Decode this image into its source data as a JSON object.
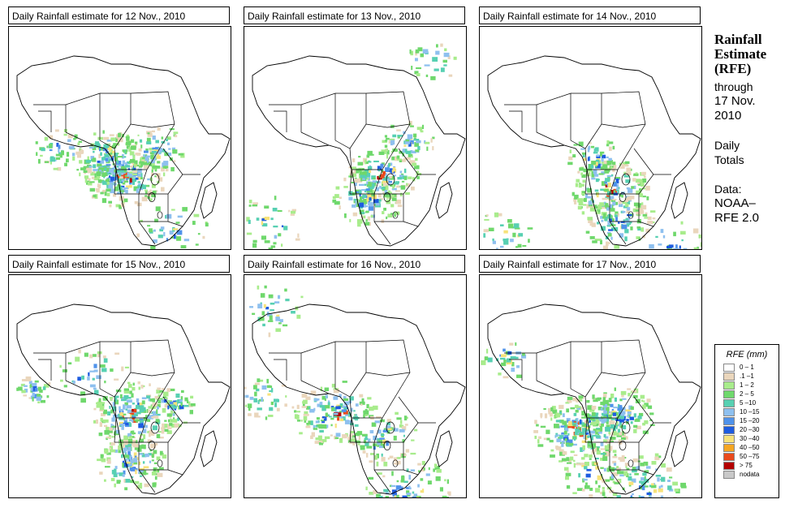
{
  "panels": [
    {
      "title": "Daily Rainfall estimate for  12 Nov., 2010",
      "pattern": 0
    },
    {
      "title": "Daily Rainfall estimate for  13 Nov., 2010",
      "pattern": 1
    },
    {
      "title": "Daily Rainfall estimate for  14 Nov., 2010",
      "pattern": 2
    },
    {
      "title": "Daily Rainfall estimate for  15 Nov., 2010",
      "pattern": 3
    },
    {
      "title": "Daily Rainfall estimate for  16 Nov., 2010",
      "pattern": 4
    },
    {
      "title": "Daily Rainfall estimate for  17 Nov., 2010",
      "pattern": 5
    }
  ],
  "side": {
    "title_line1": "Rainfall",
    "title_line2": "Estimate",
    "title_line3": "(RFE)",
    "through_line1": "through",
    "through_line2": "17 Nov.",
    "through_line3": "2010",
    "totals_line1": "Daily",
    "totals_line2": "Totals",
    "data_line1": "Data:",
    "data_line2": "NOAA–",
    "data_line3": "RFE 2.0"
  },
  "legend": {
    "title": "RFE (mm)",
    "items": [
      {
        "label": "0 – 1",
        "color": "#ffffff"
      },
      {
        "label": ".1 –1",
        "color": "#ead6bc"
      },
      {
        "label": "1 – 2",
        "color": "#a8ec8c"
      },
      {
        "label": "2 – 5",
        "color": "#6fd86c"
      },
      {
        "label": "5 –10",
        "color": "#57d0b2"
      },
      {
        "label": "10 –15",
        "color": "#8ec0ef"
      },
      {
        "label": "15 –20",
        "color": "#4f92ea"
      },
      {
        "label": "20 –30",
        "color": "#1e5ce0"
      },
      {
        "label": "30 –40",
        "color": "#f7e27a"
      },
      {
        "label": "40 –50",
        "color": "#f5a623"
      },
      {
        "label": "50 –75",
        "color": "#e94a1c"
      },
      {
        "label": "> 75",
        "color": "#b30000"
      },
      {
        "label": "nodata",
        "color": "#c8c8c8"
      }
    ]
  }
}
